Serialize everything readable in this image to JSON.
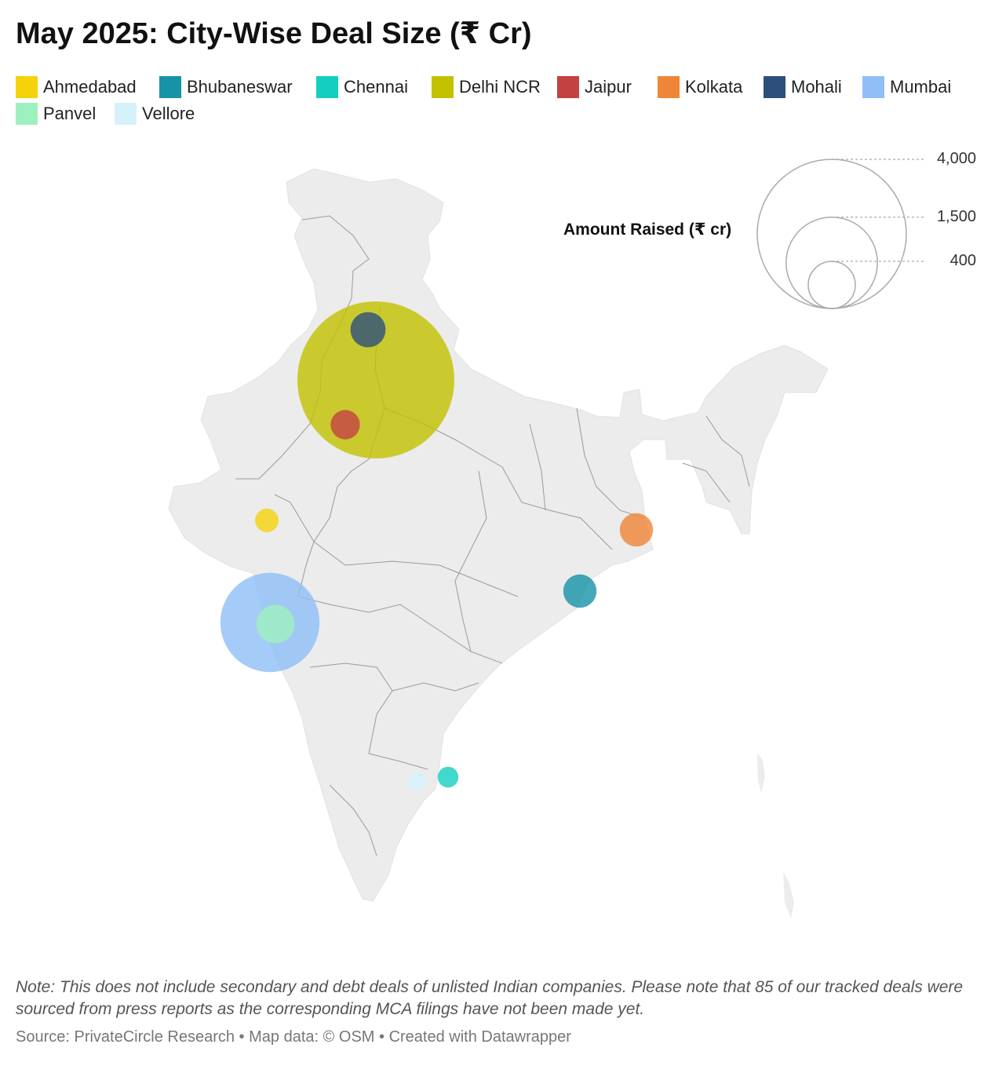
{
  "title": "May 2025: City-Wise Deal Size (₹ Cr)",
  "legend": [
    {
      "label": "Ahmedabad",
      "color": "#f5d30a"
    },
    {
      "label": "Bhubaneswar",
      "color": "#1792a6"
    },
    {
      "label": "Chennai",
      "color": "#12cfc0"
    },
    {
      "label": "Delhi NCR",
      "color": "#c2c200"
    },
    {
      "label": "Jaipur",
      "color": "#c44142"
    },
    {
      "label": "Kolkata",
      "color": "#ef8536"
    },
    {
      "label": "Mohali",
      "color": "#2d4f7c"
    },
    {
      "label": "Mumbai",
      "color": "#8fbff6"
    },
    {
      "label": "Panvel",
      "color": "#9ff0bf"
    },
    {
      "label": "Vellore",
      "color": "#d5f2fb"
    }
  ],
  "size_legend": {
    "title": "Amount Raised (₹ cr)",
    "values": [
      {
        "value": 4000,
        "label": "4,000"
      },
      {
        "value": 1500,
        "label": "1,500"
      },
      {
        "value": 400,
        "label": "400"
      }
    ]
  },
  "chart_data": {
    "type": "proportional-symbol-map",
    "region": "India",
    "title": "May 2025: City-Wise Deal Size (₹ Cr)",
    "size_metric": "Amount Raised (₹ cr)",
    "points": [
      {
        "city": "Delhi NCR",
        "value": 4000
      },
      {
        "city": "Mumbai",
        "value": 1600
      },
      {
        "city": "Panvel",
        "value": 240
      },
      {
        "city": "Kolkata",
        "value": 180
      },
      {
        "city": "Bhubaneswar",
        "value": 180
      },
      {
        "city": "Mohali",
        "value": 200
      },
      {
        "city": "Jaipur",
        "value": 140
      },
      {
        "city": "Ahmedabad",
        "value": 90
      },
      {
        "city": "Chennai",
        "value": 70
      },
      {
        "city": "Vellore",
        "value": 55
      }
    ]
  },
  "note": "Note: This does not include secondary and debt deals of unlisted Indian companies. Please note that 85 of our tracked deals were sourced from press reports as the corresponding MCA filings have not been made yet.",
  "source": "Source: PrivateCircle Research • Map data: © OSM  • Created with Datawrapper"
}
